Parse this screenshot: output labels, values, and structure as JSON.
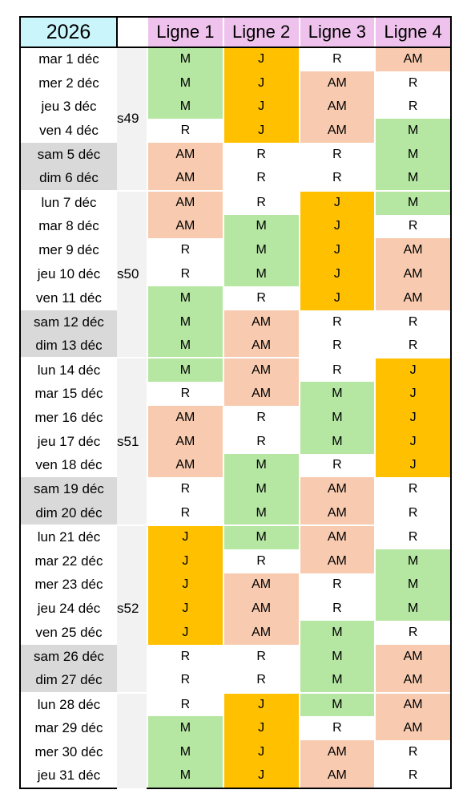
{
  "header": {
    "year": "2026",
    "lines": [
      "Ligne 1",
      "Ligne 2",
      "Ligne 3",
      "Ligne 4"
    ]
  },
  "colors": {
    "M": "#b5e6a2",
    "J": "#ffc000",
    "AM": "#f8cbb0",
    "R": "#ffffff",
    "weekend_day": "#d9d9d9",
    "year_header": "#c9f5fb",
    "line_header": "#eec2ec"
  },
  "weeks": [
    {
      "label": "s49",
      "days": [
        {
          "day": "mar 1 déc",
          "weekend": false,
          "shifts": [
            "M",
            "J",
            "R",
            "AM"
          ]
        },
        {
          "day": "mer 2 déc",
          "weekend": false,
          "shifts": [
            "M",
            "J",
            "AM",
            "R"
          ]
        },
        {
          "day": "jeu 3 déc",
          "weekend": false,
          "shifts": [
            "M",
            "J",
            "AM",
            "R"
          ]
        },
        {
          "day": "ven 4 déc",
          "weekend": false,
          "shifts": [
            "R",
            "J",
            "AM",
            "M"
          ]
        },
        {
          "day": "sam 5 déc",
          "weekend": true,
          "shifts": [
            "AM",
            "R",
            "R",
            "M"
          ]
        },
        {
          "day": "dim 6 déc",
          "weekend": true,
          "shifts": [
            "AM",
            "R",
            "R",
            "M"
          ]
        }
      ]
    },
    {
      "label": "s50",
      "days": [
        {
          "day": "lun 7 déc",
          "weekend": false,
          "shifts": [
            "AM",
            "R",
            "J",
            "M"
          ]
        },
        {
          "day": "mar 8 déc",
          "weekend": false,
          "shifts": [
            "AM",
            "M",
            "J",
            "R"
          ]
        },
        {
          "day": "mer 9 déc",
          "weekend": false,
          "shifts": [
            "R",
            "M",
            "J",
            "AM"
          ]
        },
        {
          "day": "jeu 10 déc",
          "weekend": false,
          "shifts": [
            "R",
            "M",
            "J",
            "AM"
          ]
        },
        {
          "day": "ven 11 déc",
          "weekend": false,
          "shifts": [
            "M",
            "R",
            "J",
            "AM"
          ]
        },
        {
          "day": "sam 12 déc",
          "weekend": true,
          "shifts": [
            "M",
            "AM",
            "R",
            "R"
          ]
        },
        {
          "day": "dim 13 déc",
          "weekend": true,
          "shifts": [
            "M",
            "AM",
            "R",
            "R"
          ]
        }
      ]
    },
    {
      "label": "s51",
      "days": [
        {
          "day": "lun 14 déc",
          "weekend": false,
          "shifts": [
            "M",
            "AM",
            "R",
            "J"
          ]
        },
        {
          "day": "mar 15 déc",
          "weekend": false,
          "shifts": [
            "R",
            "AM",
            "M",
            "J"
          ]
        },
        {
          "day": "mer 16 déc",
          "weekend": false,
          "shifts": [
            "AM",
            "R",
            "M",
            "J"
          ]
        },
        {
          "day": "jeu 17 déc",
          "weekend": false,
          "shifts": [
            "AM",
            "R",
            "M",
            "J"
          ]
        },
        {
          "day": "ven 18 déc",
          "weekend": false,
          "shifts": [
            "AM",
            "M",
            "R",
            "J"
          ]
        },
        {
          "day": "sam 19 déc",
          "weekend": true,
          "shifts": [
            "R",
            "M",
            "AM",
            "R"
          ]
        },
        {
          "day": "dim 20 déc",
          "weekend": true,
          "shifts": [
            "R",
            "M",
            "AM",
            "R"
          ]
        }
      ]
    },
    {
      "label": "s52",
      "days": [
        {
          "day": "lun 21 déc",
          "weekend": false,
          "shifts": [
            "J",
            "M",
            "AM",
            "R"
          ]
        },
        {
          "day": "mar 22 déc",
          "weekend": false,
          "shifts": [
            "J",
            "R",
            "AM",
            "M"
          ]
        },
        {
          "day": "mer 23 déc",
          "weekend": false,
          "shifts": [
            "J",
            "AM",
            "R",
            "M"
          ]
        },
        {
          "day": "jeu 24 déc",
          "weekend": false,
          "shifts": [
            "J",
            "AM",
            "R",
            "M"
          ]
        },
        {
          "day": "ven 25 déc",
          "weekend": false,
          "shifts": [
            "J",
            "AM",
            "M",
            "R"
          ]
        },
        {
          "day": "sam 26 déc",
          "weekend": true,
          "shifts": [
            "R",
            "R",
            "M",
            "AM"
          ]
        },
        {
          "day": "dim 27 déc",
          "weekend": true,
          "shifts": [
            "R",
            "R",
            "M",
            "AM"
          ]
        }
      ]
    },
    {
      "label": "",
      "days": [
        {
          "day": "lun 28 déc",
          "weekend": false,
          "shifts": [
            "R",
            "J",
            "M",
            "AM"
          ]
        },
        {
          "day": "mar 29 déc",
          "weekend": false,
          "shifts": [
            "M",
            "J",
            "R",
            "AM"
          ]
        },
        {
          "day": "mer 30 déc",
          "weekend": false,
          "shifts": [
            "M",
            "J",
            "AM",
            "R"
          ]
        },
        {
          "day": "jeu 31 déc",
          "weekend": false,
          "shifts": [
            "M",
            "J",
            "AM",
            "R"
          ]
        }
      ]
    }
  ]
}
